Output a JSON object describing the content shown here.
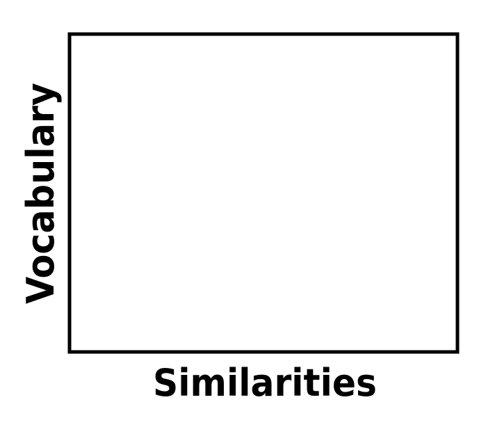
{
  "chart_data": {
    "type": "scatter",
    "title": "",
    "xlabel": "Similarities",
    "ylabel": "Vocabulary",
    "series": [],
    "grid": false,
    "frame_color": "#000000",
    "background_color": "#ffffff"
  }
}
